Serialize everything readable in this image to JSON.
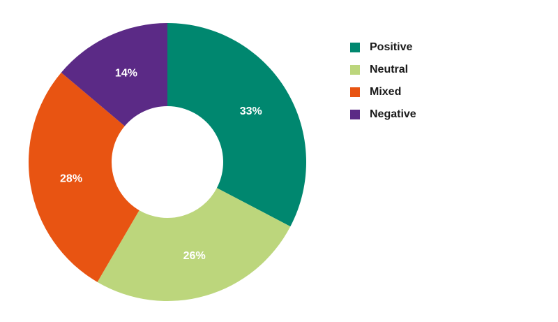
{
  "chart_data": {
    "type": "pie",
    "donut": true,
    "legend_position": "right",
    "categories": [
      "Positive",
      "Neutral",
      "Mixed",
      "Negative"
    ],
    "values": [
      33,
      26,
      28,
      14
    ],
    "labels": [
      "33%",
      "26%",
      "28%",
      "14%"
    ],
    "colors": [
      "#00876f",
      "#bcd67c",
      "#e85412",
      "#5b2a86"
    ]
  }
}
